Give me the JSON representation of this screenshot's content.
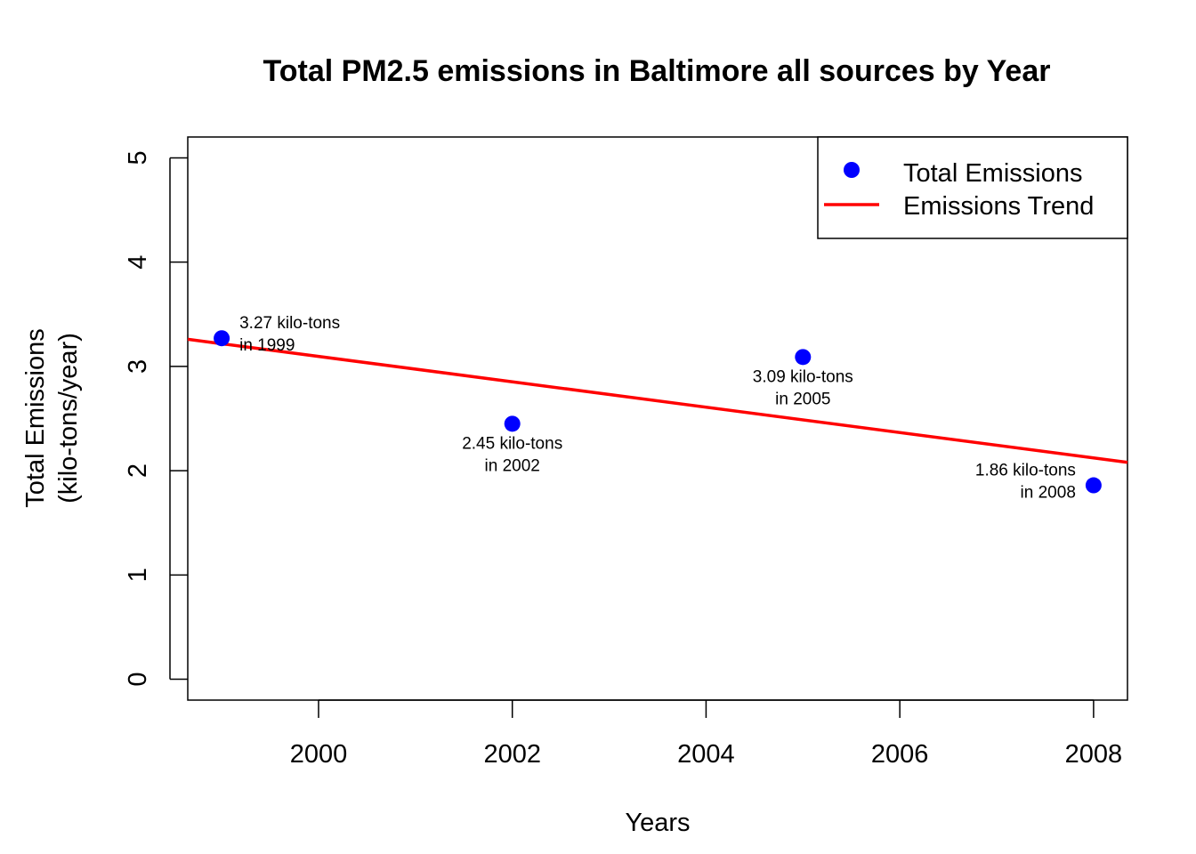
{
  "chart_data": {
    "type": "scatter",
    "title": "Total PM2.5 emissions in Baltimore all sources by Year",
    "xlabel": "Years",
    "ylabel_lines": [
      "Total Emissions",
      "(kilo-tons/year)"
    ],
    "xlim": [
      1998.65,
      2008.35
    ],
    "ylim": [
      -0.2,
      5.2
    ],
    "x_ticks": [
      2000,
      2002,
      2004,
      2006,
      2008
    ],
    "y_ticks": [
      0,
      1,
      2,
      3,
      4,
      5
    ],
    "grid": false,
    "legend_position": "top-right",
    "series": [
      {
        "name": "Total Emissions",
        "kind": "points",
        "color": "#0000ff",
        "x": [
          1999,
          2002,
          2005,
          2008
        ],
        "y": [
          3.27,
          2.45,
          3.09,
          1.86
        ],
        "labels": [
          [
            "3.27 kilo-tons",
            "in 1999"
          ],
          [
            "2.45 kilo-tons",
            "in 2002"
          ],
          [
            "3.09 kilo-tons",
            "in 2005"
          ],
          [
            "1.86 kilo-tons",
            "in 2008"
          ]
        ]
      },
      {
        "name": "Emissions Trend",
        "kind": "line",
        "color": "#ff0000",
        "x": [
          1998.65,
          2008.35
        ],
        "y": [
          3.26,
          2.08
        ]
      }
    ]
  }
}
